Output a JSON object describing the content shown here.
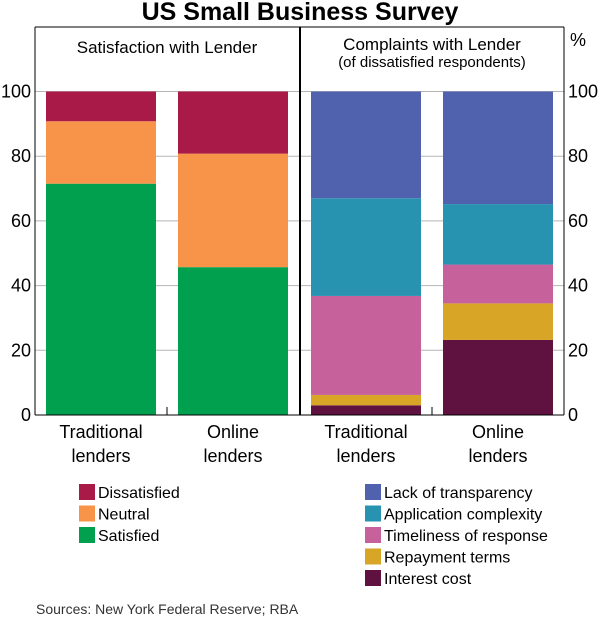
{
  "chart_data": {
    "type": "bar",
    "stacked": true,
    "title": "US Small Business Survey",
    "unit_label": "%",
    "ylim": [
      0,
      100
    ],
    "yticks": [
      0,
      20,
      40,
      60,
      80,
      100
    ],
    "grid": true,
    "source": "Sources: New York Federal Reserve; RBA",
    "panels": [
      {
        "title": "Satisfaction with Lender",
        "subtitle": "",
        "categories": [
          [
            "Traditional",
            "lenders"
          ],
          [
            "Online",
            "lenders"
          ]
        ],
        "legend_position": "bottom-left",
        "series": [
          {
            "name": "Satisfied",
            "color": "#00a04f",
            "values": [
              71.5,
              45.7
            ]
          },
          {
            "name": "Neutral",
            "color": "#f7944a",
            "values": [
              19.3,
              35.1
            ]
          },
          {
            "name": "Dissatisfied",
            "color": "#a91a48",
            "values": [
              9.2,
              19.2
            ]
          }
        ],
        "legend_order": [
          "Dissatisfied",
          "Neutral",
          "Satisfied"
        ]
      },
      {
        "title": "Complaints with Lender",
        "subtitle": "(of dissatisfied respondents)",
        "categories": [
          [
            "Traditional",
            "lenders"
          ],
          [
            "Online",
            "lenders"
          ]
        ],
        "legend_position": "bottom-right",
        "series": [
          {
            "name": "Interest cost",
            "color": "#5f1140",
            "values": [
              3.0,
              23.2
            ]
          },
          {
            "name": "Repayment terms",
            "color": "#d9a526",
            "values": [
              3.2,
              11.3
            ]
          },
          {
            "name": "Timeliness of response",
            "color": "#c6619b",
            "values": [
              30.6,
              12.0
            ]
          },
          {
            "name": "Application complexity",
            "color": "#2793b0",
            "values": [
              30.2,
              18.7
            ]
          },
          {
            "name": "Lack of transparency",
            "color": "#5062ad",
            "values": [
              33.0,
              34.8
            ]
          }
        ],
        "legend_order": [
          "Lack of transparency",
          "Application complexity",
          "Timeliness of response",
          "Repayment terms",
          "Interest cost"
        ]
      }
    ]
  }
}
